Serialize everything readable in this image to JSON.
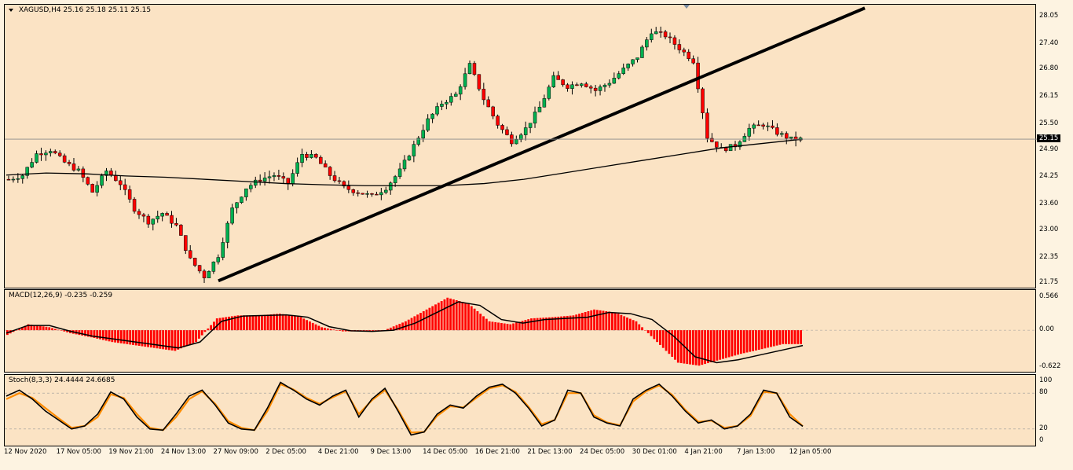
{
  "symbol_label": "XAGUSD,H4",
  "ohlc_label": "25.16 25.18 25.11 25.15",
  "macd_label": "MACD(12,26,9) -0.235 -0.259",
  "stoch_label": "Stoch(8,3,3) 24.4444 24.6685",
  "current_price": "25.15",
  "price_axis": [
    "28.05",
    "27.40",
    "26.80",
    "26.15",
    "25.50",
    "24.90",
    "24.25",
    "23.60",
    "23.00",
    "22.35",
    "21.75"
  ],
  "macd_axis": [
    "0.566",
    "0.00",
    "-0.622"
  ],
  "stoch_axis": [
    "100",
    "80",
    "20",
    "0"
  ],
  "time_axis": [
    "12 Nov 2020",
    "17 Nov 05:00",
    "19 Nov 21:00",
    "24 Nov 13:00",
    "27 Nov 09:00",
    "2 Dec 05:00",
    "4 Dec 21:00",
    "9 Dec 13:00",
    "14 Dec 05:00",
    "16 Dec 21:00",
    "21 Dec 13:00",
    "24 Dec 05:00",
    "30 Dec 01:00",
    "4 Jan 21:00",
    "7 Jan 13:00",
    "12 Jan 05:00"
  ],
  "colors": {
    "background": "#fbe3c4",
    "bull": "#00b050",
    "bear": "#ff0000",
    "macd_hist": "#ff0000",
    "signal": "#000000",
    "stoch_main": "#000000",
    "stoch_signal": "#ff8c00",
    "trendline": "#000000"
  },
  "chart_data": [
    {
      "type": "line",
      "title": "XAGUSD,H4",
      "description_series": "close price path (approx.)",
      "series": [
        {
          "values": [
            24.2,
            24.3,
            24.8,
            24.9,
            24.6,
            24.4,
            23.9,
            24.4,
            24.1,
            23.5,
            23.2,
            23.4,
            23.1,
            22.3,
            21.9,
            22.4,
            23.5,
            24.0,
            24.2,
            24.3,
            24.1,
            24.8,
            24.7,
            24.3,
            24.0,
            23.9,
            23.8,
            24.0,
            24.4,
            25.0,
            25.6,
            26.0,
            26.2,
            26.9,
            26.1,
            25.5,
            25.1,
            25.4,
            25.9,
            26.6,
            26.4,
            26.5,
            26.3,
            26.5,
            26.8,
            27.1,
            27.7,
            27.6,
            27.3,
            27.0,
            25.2,
            24.9,
            25.0,
            25.4,
            25.5,
            25.3,
            25.15
          ]
        }
      ],
      "moving_average": [
        24.3,
        24.35,
        24.33,
        24.28,
        24.25,
        24.2,
        24.15,
        24.1,
        24.07,
        24.05,
        24.05,
        24.05,
        24.1,
        24.2,
        24.35,
        24.5,
        24.65,
        24.8,
        24.95,
        25.05,
        25.15
      ],
      "trendline": [
        [
          21.8
        ],
        [
          27.95
        ]
      ],
      "ylim": [
        21.75,
        28.05
      ]
    },
    {
      "type": "bar",
      "title": "MACD(12,26,9)",
      "values": [
        -0.08,
        0.1,
        0.05,
        -0.05,
        -0.12,
        -0.2,
        -0.25,
        -0.3,
        -0.35,
        -0.2,
        0.2,
        0.25,
        0.25,
        0.28,
        0.22,
        0.05,
        -0.02,
        -0.02,
        0.0,
        0.15,
        0.35,
        0.55,
        0.45,
        0.15,
        0.1,
        0.2,
        0.22,
        0.25,
        0.35,
        0.3,
        0.15,
        -0.2,
        -0.55,
        -0.6,
        -0.5,
        -0.4,
        -0.32,
        -0.235
      ],
      "signal": [
        -0.05,
        0.08,
        0.08,
        -0.02,
        -0.1,
        -0.15,
        -0.2,
        -0.25,
        -0.3,
        -0.2,
        0.15,
        0.24,
        0.25,
        0.26,
        0.22,
        0.06,
        -0.01,
        -0.02,
        0.0,
        0.12,
        0.3,
        0.48,
        0.42,
        0.18,
        0.12,
        0.18,
        0.2,
        0.22,
        0.3,
        0.28,
        0.18,
        -0.1,
        -0.45,
        -0.55,
        -0.5,
        -0.42,
        -0.34,
        -0.259
      ],
      "ylim": [
        -0.65,
        0.6
      ]
    },
    {
      "type": "line",
      "title": "Stoch(8,3,3)",
      "series": [
        {
          "values": [
            75,
            85,
            70,
            50,
            35,
            20,
            25,
            45,
            82,
            70,
            40,
            20,
            18,
            45,
            75,
            85,
            60,
            30,
            20,
            18,
            55,
            98,
            85,
            70,
            60,
            75,
            85,
            40,
            70,
            88,
            50,
            10,
            15,
            45,
            60,
            55,
            75,
            90,
            95,
            80,
            55,
            25,
            35,
            85,
            80,
            40,
            30,
            25,
            70,
            85,
            95,
            75,
            50,
            30,
            35,
            20,
            25,
            45,
            85,
            80,
            40,
            24.44
          ]
        },
        {
          "values": [
            70,
            80,
            72,
            55,
            38,
            22,
            25,
            40,
            78,
            72,
            45,
            22,
            18,
            40,
            70,
            83,
            62,
            33,
            22,
            18,
            50,
            95,
            86,
            72,
            62,
            73,
            83,
            45,
            68,
            85,
            52,
            14,
            15,
            42,
            58,
            56,
            72,
            88,
            93,
            82,
            57,
            28,
            35,
            80,
            80,
            43,
            31,
            26,
            66,
            83,
            93,
            77,
            52,
            32,
            34,
            22,
            25,
            42,
            82,
            80,
            45,
            24.67
          ]
        }
      ],
      "ylim": [
        0,
        100
      ]
    }
  ]
}
